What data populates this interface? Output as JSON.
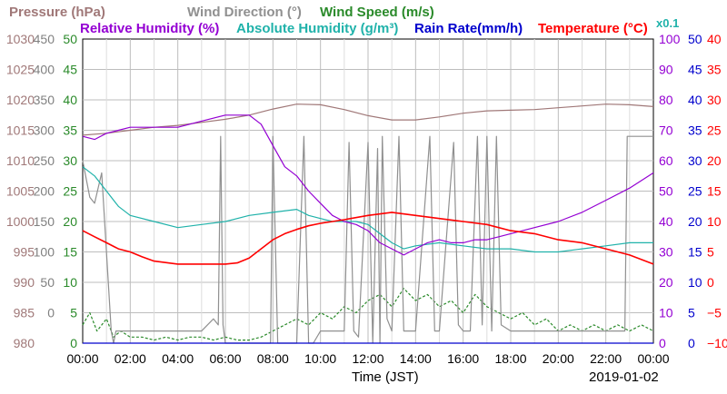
{
  "chart_data": {
    "type": "line",
    "date_label": "2019-01-02",
    "xlabel": "Time (JST)",
    "x_ticks": [
      "00:00",
      "02:00",
      "04:00",
      "06:00",
      "08:00",
      "10:00",
      "12:00",
      "14:00",
      "16:00",
      "18:00",
      "20:00",
      "22:00",
      "00:00"
    ],
    "legend_row1": [
      {
        "text": "Pressure (hPa)",
        "color": "#a07878"
      },
      {
        "text": "Wind Direction (°)",
        "color": "#909090"
      },
      {
        "text": "Wind Speed (m/s)",
        "color": "#2a8a2a"
      }
    ],
    "legend_row2": [
      {
        "text": "Relative Humidity (%)",
        "color": "#9400d3"
      },
      {
        "text": "Absolute Humidity (g/m³)",
        "color": "#20b2aa"
      },
      {
        "text": "Rain Rate(mm/h)",
        "color": "#0000cd"
      },
      {
        "text": "Temperature (°C)",
        "color": "#ff0000"
      },
      {
        "text": "x0.1",
        "color": "#20b2aa"
      }
    ],
    "axes": {
      "pressure": {
        "ticks": [
          "1030",
          "1025",
          "1020",
          "1015",
          "1010",
          "1005",
          "1000",
          "995",
          "990",
          "985",
          "980"
        ],
        "range": [
          980,
          1030
        ],
        "color": "#a07878"
      },
      "wind_direction": {
        "ticks": [
          "450",
          "400",
          "350",
          "300",
          "250",
          "200",
          "150",
          "100",
          "50",
          "0"
        ],
        "range": [
          0,
          500
        ],
        "color": "#808080"
      },
      "wind_speed": {
        "ticks": [
          "50",
          "45",
          "40",
          "35",
          "30",
          "25",
          "20",
          "15",
          "10",
          "5",
          "0"
        ],
        "range": [
          0,
          50
        ],
        "color": "#2a8a2a"
      },
      "relative_humidity": {
        "ticks": [
          "100",
          "90",
          "80",
          "70",
          "60",
          "50",
          "40",
          "30",
          "20",
          "10",
          "0"
        ],
        "range": [
          0,
          100
        ],
        "color": "#9400d3"
      },
      "rain_rate": {
        "ticks": [
          "50",
          "45",
          "40",
          "35",
          "30",
          "25",
          "20",
          "15",
          "10",
          "5",
          "0"
        ],
        "range": [
          0,
          50
        ],
        "color": "#0000cd"
      },
      "temperature": {
        "ticks": [
          "40",
          "35",
          "30",
          "25",
          "20",
          "15",
          "10",
          "5",
          "0",
          "−5",
          "−10"
        ],
        "range": [
          -10,
          40
        ],
        "color": "#ff0000"
      }
    },
    "series": [
      {
        "name": "Pressure (hPa)",
        "axis": "pressure",
        "color": "#a07878",
        "x": [
          0,
          1,
          2,
          3,
          4,
          5,
          6,
          7,
          8,
          9,
          10,
          11,
          12,
          13,
          14,
          15,
          16,
          17,
          18,
          19,
          20,
          21,
          22,
          23,
          24
        ],
        "values": [
          1014.2,
          1014.5,
          1015.0,
          1015.5,
          1015.8,
          1016.3,
          1016.8,
          1017.5,
          1018.5,
          1019.3,
          1019.2,
          1018.4,
          1017.4,
          1016.7,
          1016.7,
          1017.2,
          1017.8,
          1018.2,
          1018.3,
          1018.4,
          1018.7,
          1019.0,
          1019.3,
          1019.2,
          1018.9
        ]
      },
      {
        "name": "Relative Humidity (%)",
        "axis": "relative_humidity",
        "color": "#9400d3",
        "x": [
          0,
          0.5,
          1,
          1.5,
          2,
          3,
          4,
          5,
          6,
          7,
          7.5,
          8,
          8.5,
          9,
          9.5,
          10,
          10.5,
          11,
          11.5,
          12,
          12.5,
          13,
          13.5,
          14,
          14.5,
          15,
          15.5,
          16,
          16.5,
          17,
          17.5,
          18,
          18.5,
          19,
          20,
          21,
          22,
          23,
          24
        ],
        "values": [
          68,
          67,
          69,
          70,
          71,
          71,
          71,
          73,
          75,
          75,
          72,
          65,
          58,
          55,
          50,
          46,
          42,
          40,
          39,
          37,
          33,
          31,
          29,
          31,
          33,
          34,
          33,
          33,
          34,
          34,
          35,
          36,
          37,
          38,
          40,
          43,
          47,
          51,
          56
        ]
      },
      {
        "name": "Absolute Humidity (g/m³) x0.1",
        "axis": "relative_humidity",
        "color": "#20b2aa",
        "x": [
          0,
          0.5,
          1,
          1.5,
          2,
          3,
          4,
          5,
          6,
          7,
          8,
          9,
          9.5,
          10,
          10.5,
          11,
          11.5,
          12,
          12.5,
          13,
          13.5,
          14,
          15,
          16,
          17,
          18,
          19,
          20,
          21,
          22,
          23,
          24
        ],
        "values": [
          58,
          55,
          50,
          45,
          42,
          40,
          38,
          39,
          40,
          42,
          43,
          44,
          42,
          41,
          40,
          40,
          40,
          39,
          36,
          33,
          31,
          32,
          33,
          32,
          31,
          31,
          30,
          30,
          31,
          32,
          33,
          33
        ]
      },
      {
        "name": "Temperature (°C)",
        "axis": "temperature",
        "color": "#ff0000",
        "x": [
          0,
          0.5,
          1,
          1.5,
          2,
          2.5,
          3,
          4,
          5,
          6,
          6.5,
          7,
          7.5,
          8,
          8.5,
          9,
          9.5,
          10,
          10.5,
          11,
          12,
          13,
          14,
          15,
          16,
          17,
          18,
          19,
          20,
          21,
          22,
          23,
          24
        ],
        "values": [
          8.5,
          7.5,
          6.5,
          5.5,
          5.0,
          4.2,
          3.5,
          3.0,
          3.0,
          3.0,
          3.2,
          4.0,
          5.5,
          7.0,
          8.0,
          8.7,
          9.3,
          9.7,
          10.0,
          10.3,
          11.0,
          11.5,
          11.0,
          10.5,
          10.0,
          9.5,
          8.5,
          8.0,
          7.0,
          6.5,
          5.5,
          4.5,
          3.0
        ]
      },
      {
        "name": "Wind Direction (°)",
        "axis": "wind_direction",
        "color": "#909090",
        "x": [
          0,
          0.3,
          0.5,
          0.8,
          1.2,
          1.3,
          1.4,
          2,
          3,
          4,
          5,
          5.5,
          5.7,
          5.8,
          5.9,
          6,
          7,
          7.9,
          8,
          8.2,
          8.4,
          9,
          9.3,
          9.5,
          9.7,
          10,
          10.5,
          11,
          11.2,
          11.4,
          11.6,
          12,
          12.2,
          12.4,
          12.5,
          12.6,
          12.8,
          13,
          13.3,
          13.5,
          14,
          14.6,
          14.8,
          15,
          15.6,
          15.8,
          16,
          16.3,
          16.6,
          16.8,
          17,
          17.2,
          17.4,
          17.6,
          18,
          19,
          20,
          21,
          22,
          22.5,
          22.8,
          22.9,
          23,
          24
        ],
        "values": [
          300,
          240,
          230,
          280,
          20,
          0,
          20,
          20,
          20,
          20,
          20,
          40,
          30,
          340,
          30,
          0,
          0,
          0,
          340,
          0,
          0,
          0,
          340,
          0,
          0,
          20,
          20,
          20,
          330,
          20,
          10,
          330,
          0,
          320,
          0,
          340,
          40,
          20,
          340,
          20,
          20,
          340,
          20,
          20,
          330,
          30,
          20,
          20,
          340,
          30,
          340,
          20,
          340,
          30,
          20,
          20,
          20,
          20,
          20,
          20,
          20,
          340,
          340,
          340
        ]
      },
      {
        "name": "Wind Speed (m/s)",
        "axis": "wind_speed",
        "color": "#2a8a2a",
        "x": [
          0,
          0.3,
          0.6,
          1,
          1.3,
          1.6,
          2,
          2.5,
          3,
          3.5,
          4,
          4.5,
          5,
          5.5,
          6,
          6.5,
          7,
          7.5,
          8,
          8.5,
          9,
          9.5,
          10,
          10.5,
          11,
          11.5,
          12,
          12.5,
          13,
          13.5,
          14,
          14.5,
          15,
          15.5,
          16,
          16.5,
          17,
          17.5,
          18,
          18.5,
          19,
          19.5,
          20,
          20.5,
          21,
          21.5,
          22,
          22.5,
          23,
          23.5,
          24
        ],
        "values": [
          3,
          5,
          2,
          4,
          1,
          2,
          1,
          1,
          0.5,
          1,
          0.5,
          1,
          1,
          0.5,
          1,
          0.5,
          0.5,
          1,
          2,
          3,
          4,
          3,
          5,
          4,
          6,
          5,
          7,
          8,
          6,
          9,
          7,
          8,
          6,
          7,
          5,
          8,
          6,
          5,
          4,
          5,
          3,
          4,
          2,
          3,
          2,
          3,
          2,
          3,
          2,
          3,
          2
        ]
      },
      {
        "name": "Rain Rate(mm/h)",
        "axis": "rain_rate",
        "color": "#0000cd",
        "x": [
          0,
          24
        ],
        "values": [
          0,
          0
        ]
      }
    ]
  }
}
